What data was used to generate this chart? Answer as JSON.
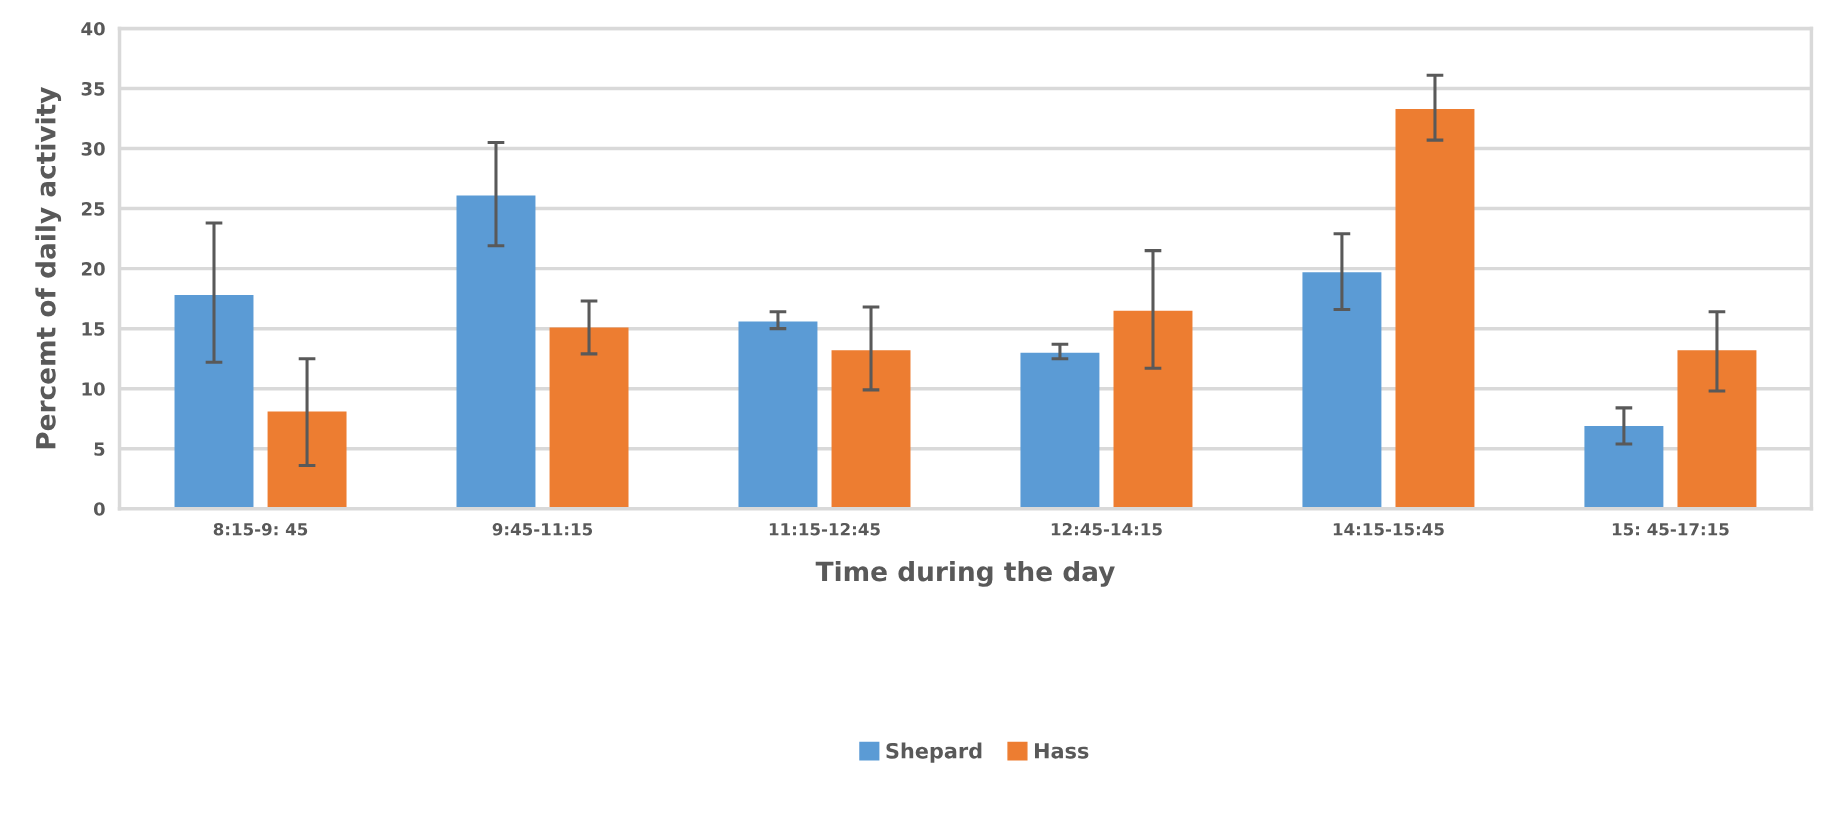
{
  "chart_data": {
    "type": "bar",
    "xlabel": "Time during the day",
    "ylabel": "Percemt of daily activity",
    "categories": [
      "8:15-9: 45",
      "9:45-11:15",
      "11:15-12:45",
      "12:45-14:15",
      "14:15-15:45",
      "15: 45-17:15"
    ],
    "series": [
      {
        "name": "Shepard",
        "color": "#5b9bd5",
        "values": [
          17.8,
          26.1,
          15.6,
          13.0,
          19.7,
          6.9
        ],
        "errors": [
          [
            12.2,
            23.8
          ],
          [
            21.9,
            30.5
          ],
          [
            15.0,
            16.4
          ],
          [
            12.5,
            13.7
          ],
          [
            16.6,
            22.9
          ],
          [
            5.4,
            8.4
          ]
        ]
      },
      {
        "name": "Hass",
        "color": "#ed7d31",
        "values": [
          8.1,
          15.1,
          13.2,
          16.5,
          33.3,
          13.2
        ],
        "errors": [
          [
            3.6,
            12.5
          ],
          [
            12.9,
            17.3
          ],
          [
            9.9,
            16.8
          ],
          [
            11.7,
            21.5
          ],
          [
            30.7,
            36.1
          ],
          [
            9.8,
            16.4
          ]
        ]
      }
    ],
    "ylim": [
      0,
      40
    ],
    "yticks": [
      0,
      5,
      10,
      15,
      20,
      25,
      30,
      35,
      40
    ],
    "grid": "y",
    "legend": "bottom"
  }
}
